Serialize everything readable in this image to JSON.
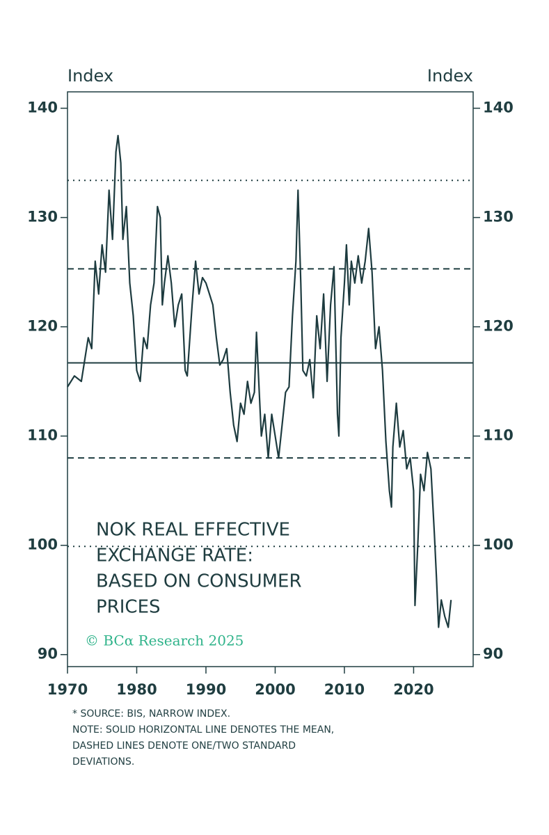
{
  "chart_data": {
    "type": "line",
    "y_axis_label": "Index",
    "y2_axis_label": "Index",
    "title_lines": [
      "NOK REAL EFFECTIVE",
      "EXCHANGE RATE:",
      "BASED ON CONSUMER",
      "PRICES"
    ],
    "copyright": "© BCα Research 2025",
    "notes": [
      "* SOURCE: BIS, NARROW INDEX.",
      "NOTE: SOLID HORIZONTAL LINE DENOTES THE MEAN,",
      "DASHED LINES DENOTE ONE/TWO STANDARD",
      "DEVIATIONS."
    ],
    "xlim": [
      1970,
      2028.6
    ],
    "xticks": [
      1970,
      1980,
      1990,
      2000,
      2010,
      2020
    ],
    "ylim": [
      88.9,
      141.5
    ],
    "yticks": [
      90,
      100,
      110,
      120,
      130,
      140
    ],
    "reference_lines": [
      {
        "value": 133.4,
        "style": "dotted"
      },
      {
        "value": 125.3,
        "style": "dashed"
      },
      {
        "value": 116.7,
        "style": "solid"
      },
      {
        "value": 108.0,
        "style": "dashed"
      },
      {
        "value": 99.9,
        "style": "dotted"
      }
    ],
    "series": [
      {
        "color": "#1d3b3f",
        "x": [
          1970,
          1971,
          1972,
          1973,
          1973.5,
          1974,
          1974.5,
          1975,
          1975.5,
          1976,
          1976.5,
          1977,
          1977.3,
          1977.7,
          1978,
          1978.5,
          1979,
          1979.5,
          1980,
          1980.5,
          1981,
          1981.5,
          1982,
          1982.5,
          1983,
          1983.4,
          1983.7,
          1984,
          1984.5,
          1985,
          1985.5,
          1986,
          1986.5,
          1987,
          1987.3,
          1988,
          1988.5,
          1989,
          1989.5,
          1990,
          1990.5,
          1991,
          1991.5,
          1992,
          1992.5,
          1993,
          1993.5,
          1994,
          1994.5,
          1995,
          1995.5,
          1996,
          1996.5,
          1997,
          1997.3,
          1997.7,
          1998,
          1998.5,
          1999,
          1999.5,
          2000,
          2000.5,
          2001,
          2001.5,
          2002,
          2002.5,
          2003,
          2003.3,
          2003.7,
          2004,
          2004.5,
          2005,
          2005.5,
          2006,
          2006.5,
          2007,
          2007.5,
          2008,
          2008.5,
          2009,
          2009.2,
          2009.5,
          2010,
          2010.3,
          2010.7,
          2011,
          2011.5,
          2012,
          2012.5,
          2013,
          2013.5,
          2014,
          2014.5,
          2015,
          2015.5,
          2016,
          2016.5,
          2016.8,
          2017,
          2017.5,
          2018,
          2018.5,
          2019,
          2019.5,
          2020,
          2020.2,
          2020.6,
          2021,
          2021.5,
          2022,
          2022.5,
          2023,
          2023.3,
          2023.6,
          2024,
          2024.5,
          2025,
          2025.4
        ],
        "values": [
          114.5,
          115.5,
          115,
          119,
          118,
          126,
          123,
          127.5,
          125,
          132.5,
          128,
          136,
          137.5,
          135,
          128,
          131,
          124,
          121,
          116,
          115,
          119,
          118,
          122,
          124,
          131,
          130,
          122,
          124,
          126.5,
          124,
          120,
          122,
          123,
          116,
          115.5,
          122,
          126,
          123,
          124.5,
          124,
          123,
          122,
          119,
          116.5,
          117,
          118,
          114,
          111,
          109.5,
          113,
          112,
          115,
          113,
          114,
          119.5,
          114,
          110,
          112,
          108,
          112,
          110,
          108,
          111,
          114,
          114.5,
          121,
          126,
          132.5,
          124,
          116,
          115.5,
          117,
          113.5,
          121,
          118,
          123,
          115,
          122,
          125.5,
          112,
          110,
          119,
          124,
          127.5,
          122,
          126,
          124,
          126.5,
          124,
          126,
          129,
          125,
          118,
          120,
          116,
          109.5,
          105,
          103.5,
          109,
          113,
          109,
          110.5,
          107,
          108,
          105,
          94.5,
          100,
          106.5,
          105,
          108.5,
          107,
          101,
          97,
          92.5,
          95,
          93.5,
          92.5,
          95
        ]
      }
    ]
  }
}
